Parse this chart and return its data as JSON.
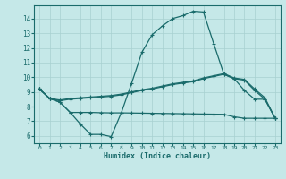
{
  "xlabel": "Humidex (Indice chaleur)",
  "x_ticks": [
    0,
    1,
    2,
    3,
    4,
    5,
    6,
    7,
    8,
    9,
    10,
    11,
    12,
    13,
    14,
    15,
    16,
    17,
    18,
    19,
    20,
    21,
    22,
    23
  ],
  "y_ticks": [
    6,
    7,
    8,
    9,
    10,
    11,
    12,
    13,
    14
  ],
  "ylim": [
    5.5,
    14.9
  ],
  "xlim": [
    -0.5,
    23.5
  ],
  "bg_color": "#c5e8e8",
  "line_color": "#1a6b6b",
  "grid_color": "#a8d0d0",
  "line1_x": [
    0,
    1,
    2,
    3,
    4,
    5,
    6,
    7,
    8,
    9,
    10,
    11,
    12,
    13,
    14,
    15,
    16,
    17,
    18,
    19,
    20,
    21,
    22,
    23
  ],
  "line1_y": [
    9.2,
    8.55,
    8.3,
    7.6,
    6.8,
    6.1,
    6.1,
    5.95,
    7.6,
    9.6,
    11.7,
    12.9,
    13.5,
    14.0,
    14.2,
    14.5,
    14.45,
    12.3,
    10.2,
    9.9,
    9.1,
    8.5,
    8.5,
    7.2
  ],
  "line2_x": [
    0,
    1,
    2,
    3,
    4,
    5,
    6,
    7,
    8,
    9,
    10,
    11,
    12,
    13,
    14,
    15,
    16,
    17,
    18,
    19,
    20,
    21,
    22,
    23
  ],
  "line2_y": [
    9.2,
    8.55,
    8.4,
    8.5,
    8.55,
    8.6,
    8.65,
    8.7,
    8.8,
    8.95,
    9.1,
    9.2,
    9.35,
    9.5,
    9.6,
    9.7,
    9.9,
    10.05,
    10.2,
    9.9,
    9.8,
    9.1,
    8.5,
    7.2
  ],
  "line3_x": [
    0,
    1,
    2,
    3,
    4,
    5,
    6,
    7,
    8,
    9,
    10,
    11,
    12,
    13,
    14,
    15,
    16,
    17,
    18,
    19,
    20,
    21,
    22,
    23
  ],
  "line3_y": [
    9.2,
    8.55,
    8.45,
    8.55,
    8.6,
    8.65,
    8.7,
    8.75,
    8.85,
    9.0,
    9.15,
    9.25,
    9.4,
    9.55,
    9.65,
    9.75,
    9.95,
    10.1,
    10.25,
    9.95,
    9.85,
    9.2,
    8.6,
    7.2
  ],
  "line4_x": [
    0,
    1,
    2,
    3,
    4,
    5,
    6,
    7,
    8,
    9,
    10,
    11,
    12,
    13,
    14,
    15,
    16,
    17,
    18,
    19,
    20,
    21,
    22,
    23
  ],
  "line4_y": [
    9.2,
    8.55,
    8.3,
    7.6,
    7.6,
    7.6,
    7.58,
    7.57,
    7.57,
    7.56,
    7.55,
    7.54,
    7.53,
    7.52,
    7.51,
    7.5,
    7.49,
    7.48,
    7.47,
    7.3,
    7.2,
    7.2,
    7.2,
    7.2
  ]
}
